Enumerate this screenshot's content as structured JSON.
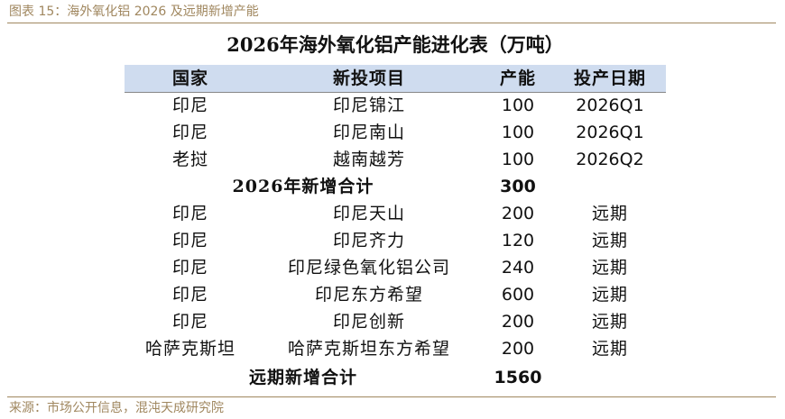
{
  "figure": {
    "title": "图表 15：海外氧化铝 2026 及远期新增产能",
    "source": "来源：市场公开信息，混沌天成研究院"
  },
  "table": {
    "title": "2026年海外氧化铝产能进化表（万吨）",
    "headers": [
      "国家",
      "新投项目",
      "产能",
      "投产日期"
    ],
    "rows_2026": [
      {
        "country": "印尼",
        "project": "印尼锦江",
        "capacity": "100",
        "date": "2026Q1"
      },
      {
        "country": "印尼",
        "project": "印尼南山",
        "capacity": "100",
        "date": "2026Q1"
      },
      {
        "country": "老挝",
        "project": "越南越芳",
        "capacity": "100",
        "date": "2026Q2"
      }
    ],
    "subtotal_2026": {
      "label": "2026年新增合计",
      "capacity": "300"
    },
    "rows_future": [
      {
        "country": "印尼",
        "project": "印尼天山",
        "capacity": "200",
        "date": "远期"
      },
      {
        "country": "印尼",
        "project": "印尼齐力",
        "capacity": "120",
        "date": "远期"
      },
      {
        "country": "印尼",
        "project": "印尼绿色氧化铝公司",
        "capacity": "240",
        "date": "远期"
      },
      {
        "country": "印尼",
        "project": "印尼东方希望",
        "capacity": "600",
        "date": "远期"
      },
      {
        "country": "印尼",
        "project": "印尼创新",
        "capacity": "200",
        "date": "远期"
      },
      {
        "country": "哈萨克斯坦",
        "project": "哈萨克斯坦东方希望",
        "capacity": "200",
        "date": "远期"
      }
    ],
    "subtotal_future": {
      "label": "远期新增合计",
      "capacity": "1560"
    }
  }
}
